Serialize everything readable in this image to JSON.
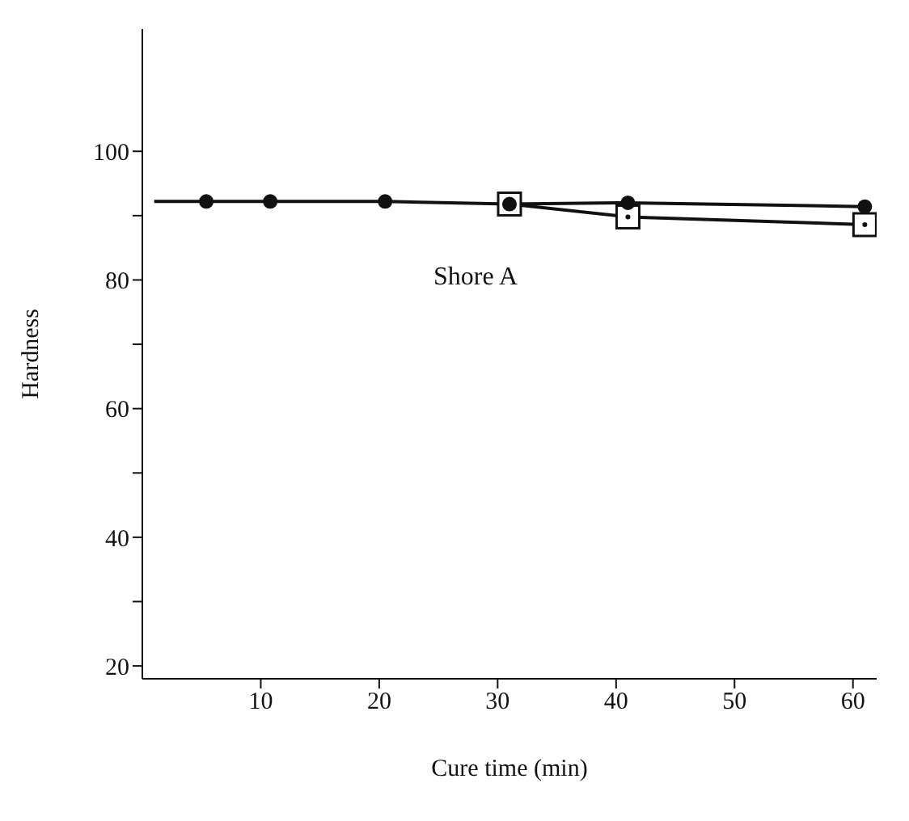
{
  "chart_data": {
    "type": "line",
    "xlabel": "Cure time (min)",
    "ylabel": "Hardness",
    "annotations": [
      "Shore A"
    ],
    "xlim": [
      0,
      62
    ],
    "ylim": [
      18,
      119
    ],
    "xticks": [
      10,
      20,
      30,
      40,
      50,
      60
    ],
    "yticks": [
      20,
      {
        "value": 30,
        "label": null
      },
      40,
      {
        "value": 50,
        "label": null
      },
      60,
      {
        "value": 70,
        "label": null
      },
      80,
      {
        "value": 90,
        "label": null
      },
      100
    ],
    "grid": false,
    "legend": false,
    "series": [
      {
        "color": "#111111",
        "marker": "circle",
        "x": [
          1,
          5.4,
          10.8,
          20.5,
          31,
          41,
          61
        ],
        "values": [
          92.2,
          92.2,
          92.2,
          92.2,
          91.8,
          92,
          91.4
        ]
      },
      {
        "color": "#111111",
        "marker": "square",
        "x": [
          31,
          41,
          61
        ],
        "values": [
          91.8,
          89.8,
          88.6
        ]
      }
    ]
  }
}
